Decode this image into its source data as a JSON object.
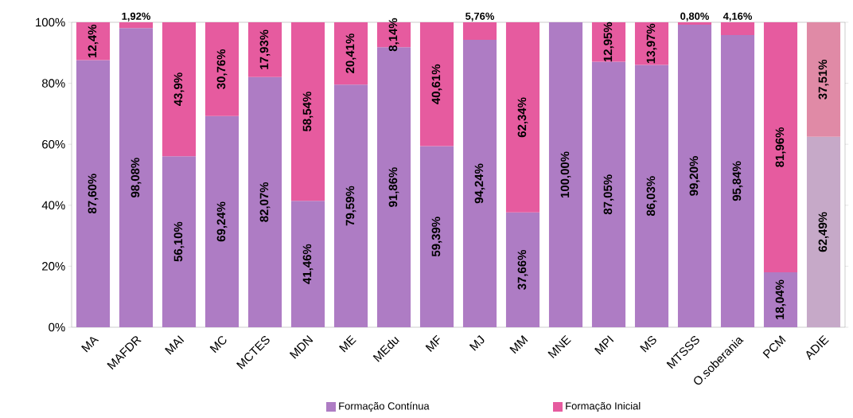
{
  "chart_data": {
    "type": "bar",
    "stacked": true,
    "legend": "bottom",
    "categories": [
      "MA",
      "MAFDR",
      "MAI",
      "MC",
      "MCTES",
      "MDN",
      "ME",
      "MEdu",
      "MF",
      "MJ",
      "MM",
      "MNE",
      "MPI",
      "MS",
      "MTSSS",
      "O.soberania",
      "PCM",
      "ADIE"
    ],
    "ylim": [
      0,
      100
    ],
    "yticks": [
      {
        "value": 0,
        "label": "0%"
      },
      {
        "value": 20,
        "label": "20%"
      },
      {
        "value": 40,
        "label": "40%"
      },
      {
        "value": 60,
        "label": "60%"
      },
      {
        "value": 80,
        "label": "80%"
      },
      {
        "value": 100,
        "label": "100%"
      }
    ],
    "series": [
      {
        "name": "Formação Contínua",
        "color": "#ae7cc4",
        "colors": [
          "#ae7cc4",
          "#ae7cc4",
          "#ae7cc4",
          "#ae7cc4",
          "#ae7cc4",
          "#ae7cc4",
          "#ae7cc4",
          "#ae7cc4",
          "#ae7cc4",
          "#ae7cc4",
          "#ae7cc4",
          "#ae7cc4",
          "#ae7cc4",
          "#ae7cc4",
          "#ae7cc4",
          "#ae7cc4",
          "#ae7cc4",
          "#c6a9c8"
        ],
        "values": [
          87.6,
          98.08,
          56.1,
          69.24,
          82.07,
          41.46,
          79.59,
          91.86,
          59.39,
          94.24,
          37.66,
          100.0,
          87.05,
          86.03,
          99.2,
          95.84,
          18.04,
          62.49
        ],
        "value_labels": [
          "87,60%",
          "98,08%",
          "56,10%",
          "69,24%",
          "82,07%",
          "41,46%",
          "79,59%",
          "91,86%",
          "59,39%",
          "94,24%",
          "37,66%",
          "100,00%",
          "87,05%",
          "86,03%",
          "99,20%",
          "95,84%",
          "18,04%",
          "62,49%"
        ]
      },
      {
        "name": "Formação Inicial",
        "color": "#e65b9f",
        "colors": [
          "#e65b9f",
          "#e65b9f",
          "#e65b9f",
          "#e65b9f",
          "#e65b9f",
          "#e65b9f",
          "#e65b9f",
          "#e65b9f",
          "#e65b9f",
          "#e65b9f",
          "#e65b9f",
          "#e65b9f",
          "#e65b9f",
          "#e65b9f",
          "#e65b9f",
          "#e65b9f",
          "#e65b9f",
          "#e08aa6"
        ],
        "values": [
          12.4,
          1.92,
          43.9,
          30.76,
          17.93,
          58.54,
          20.41,
          8.14,
          40.61,
          5.76,
          62.34,
          0,
          12.95,
          13.97,
          0.8,
          4.16,
          81.96,
          37.51
        ],
        "value_labels": [
          "12,4%",
          "1,92%",
          "43,9%",
          "30,76%",
          "17,93%",
          "58,54%",
          "20,41%",
          "8,14%",
          "40,61%",
          "5,76%",
          "62,34%",
          null,
          "12,95%",
          "13,97%",
          "0,80%",
          "4,16%",
          "81,96%",
          "37,51%"
        ]
      }
    ]
  }
}
